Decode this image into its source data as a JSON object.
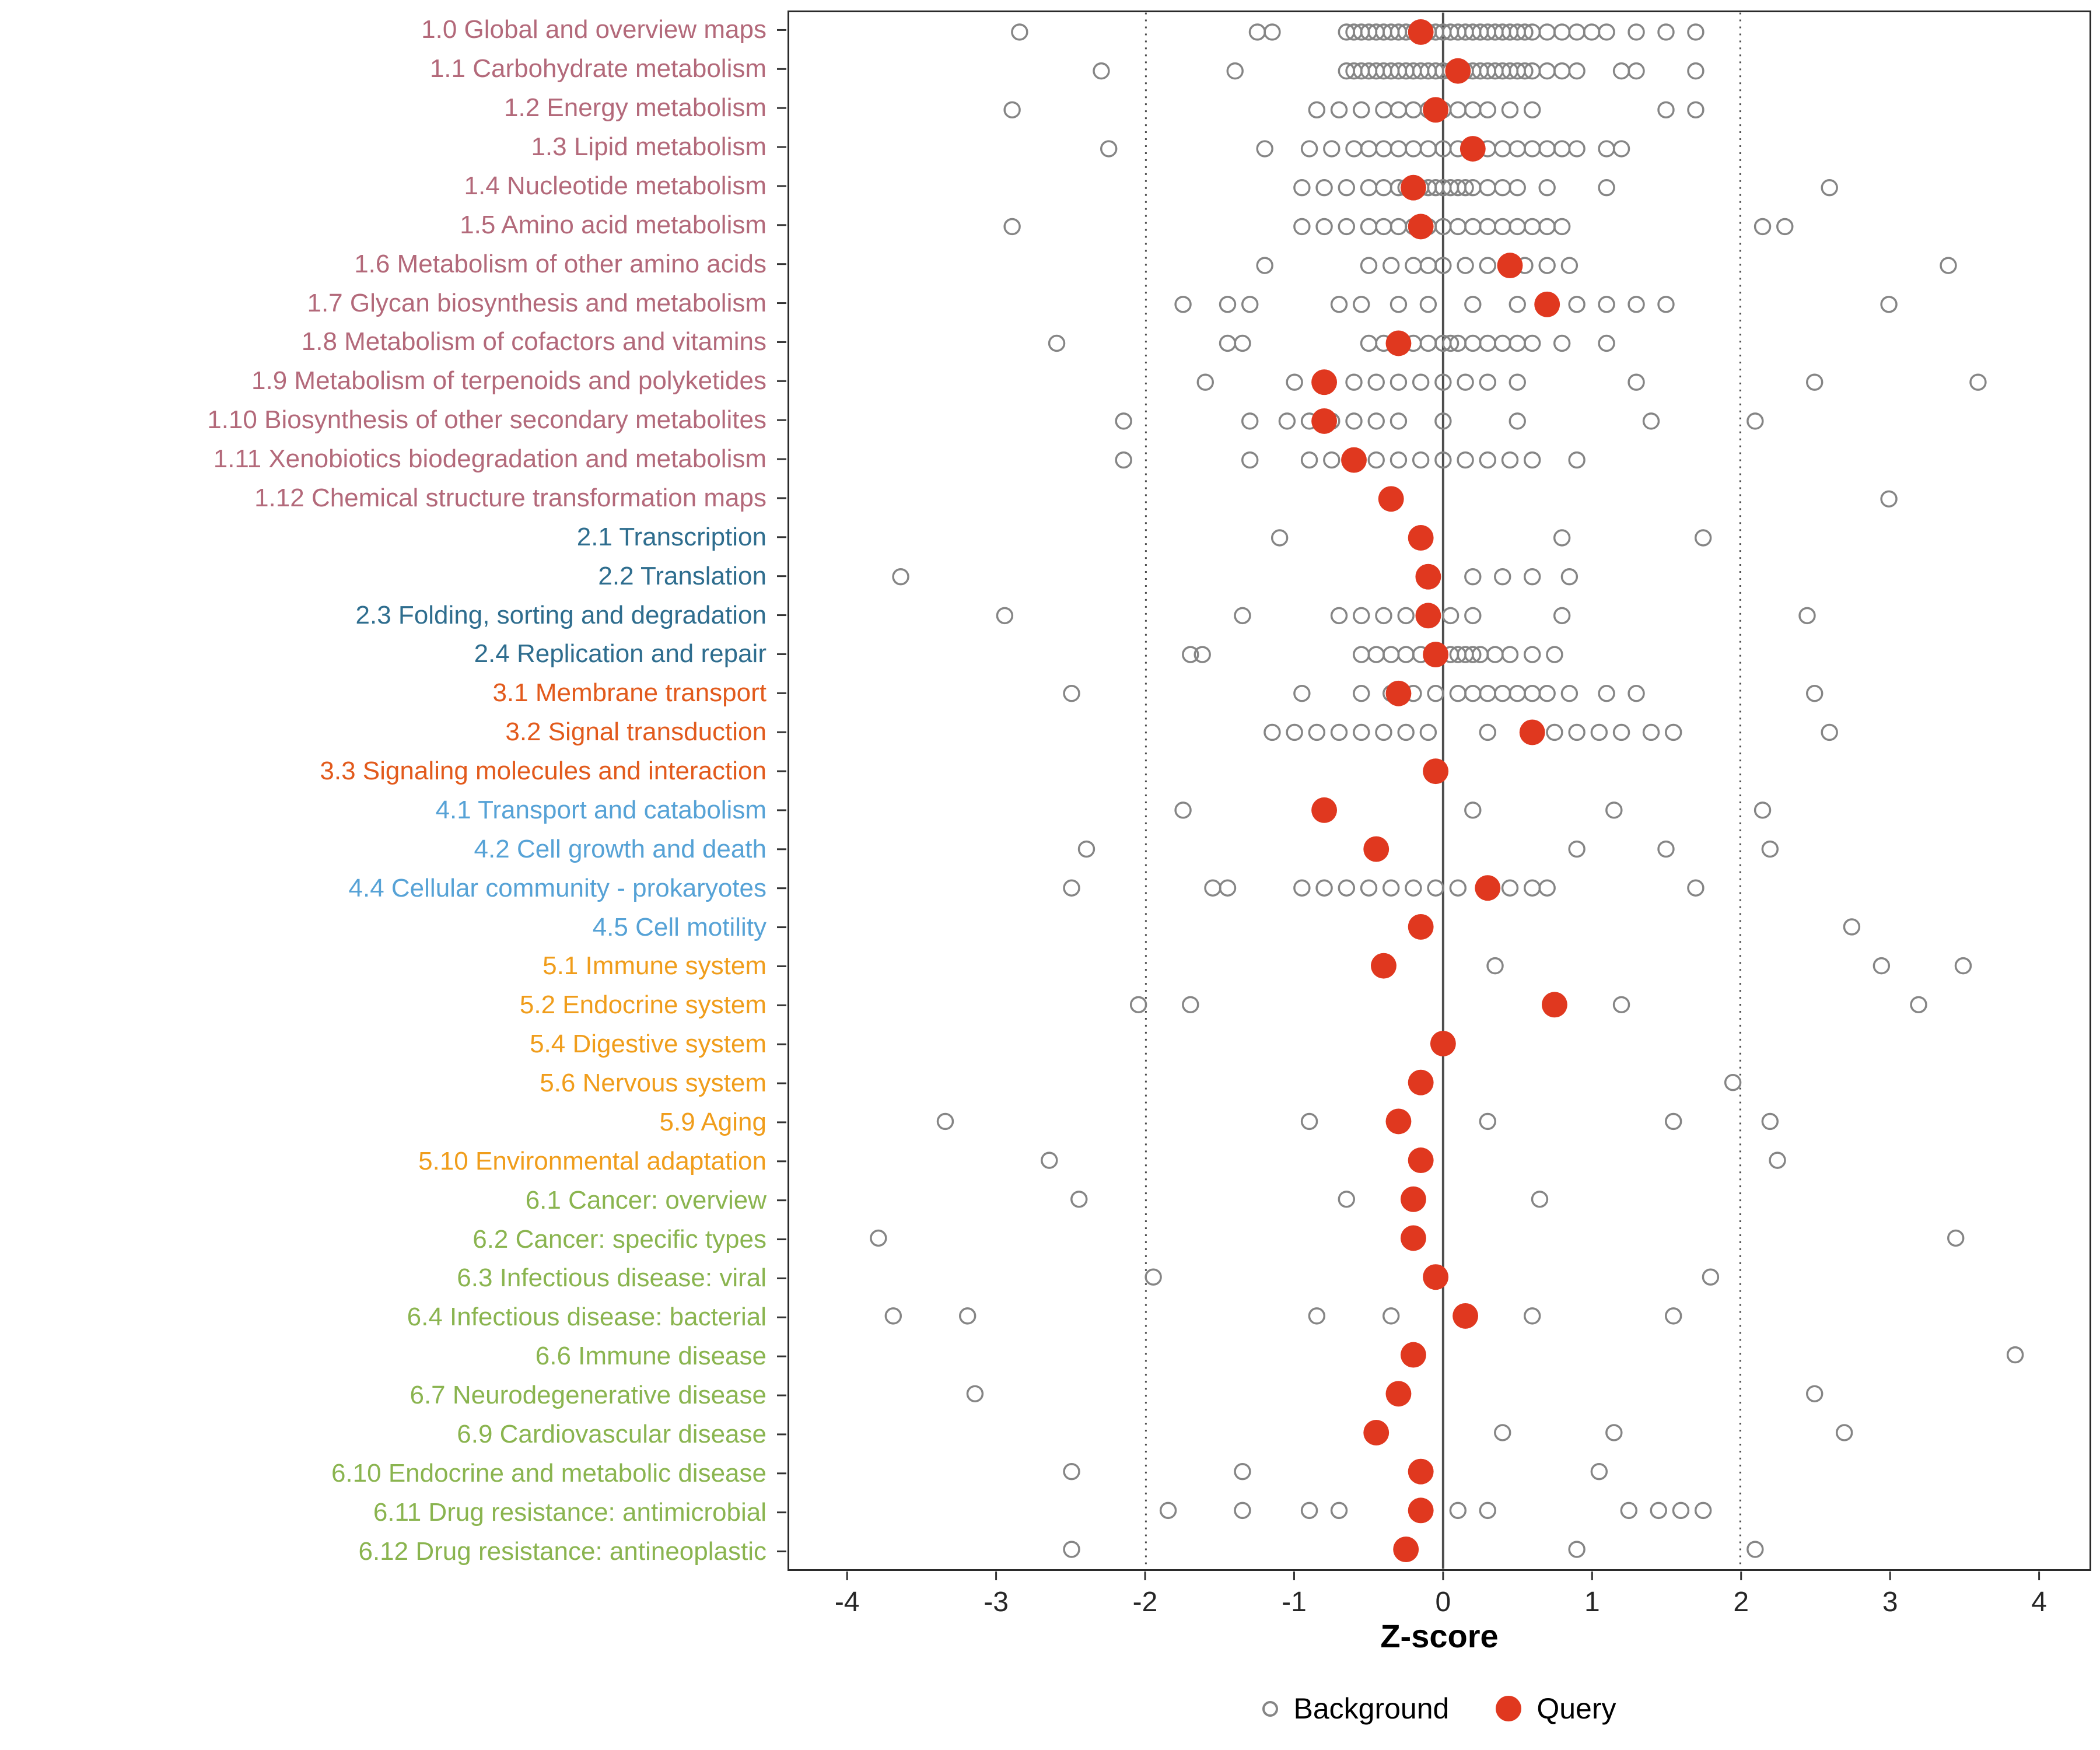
{
  "chart_data": {
    "type": "scatter",
    "title": "",
    "xlabel": "Z-score",
    "xlim": [
      -4.4,
      4.35
    ],
    "x_ticks": [
      -4,
      -3,
      -2,
      -1,
      0,
      1,
      2,
      3,
      4
    ],
    "reference_lines": {
      "solid": [
        0
      ],
      "dotted": [
        -2,
        2
      ]
    },
    "legend": [
      {
        "label": "Background",
        "type": "open"
      },
      {
        "label": "Query",
        "type": "filled"
      }
    ],
    "colors": {
      "query": "#e0381f",
      "background": "#858585",
      "ref_line": "#4d4d4d",
      "axis_text": "#262626"
    },
    "group_colors": {
      "metabolism": "#b3697a",
      "genetic": "#2e6d8e",
      "environmental": "#e25a1c",
      "cellular": "#56a2d6",
      "organismal": "#f09d1b",
      "disease": "#8ab44f"
    },
    "rows": [
      {
        "label": "1.0 Global and overview maps",
        "group": "metabolism",
        "query": -0.15,
        "background": [
          -2.85,
          -1.25,
          -1.15,
          -0.65,
          -0.6,
          -0.55,
          -0.5,
          -0.45,
          -0.4,
          -0.35,
          -0.3,
          -0.25,
          -0.2,
          -0.15,
          -0.1,
          -0.05,
          0.0,
          0.05,
          0.1,
          0.15,
          0.2,
          0.25,
          0.3,
          0.35,
          0.4,
          0.45,
          0.5,
          0.55,
          0.6,
          0.7,
          0.8,
          0.9,
          1.0,
          1.1,
          1.3,
          1.5,
          1.7
        ]
      },
      {
        "label": "1.1 Carbohydrate metabolism",
        "group": "metabolism",
        "query": 0.1,
        "background": [
          -2.3,
          -1.4,
          -0.65,
          -0.6,
          -0.55,
          -0.5,
          -0.45,
          -0.4,
          -0.35,
          -0.3,
          -0.25,
          -0.2,
          -0.15,
          -0.1,
          -0.05,
          0.0,
          0.05,
          0.1,
          0.15,
          0.2,
          0.25,
          0.3,
          0.35,
          0.4,
          0.45,
          0.5,
          0.55,
          0.6,
          0.7,
          0.8,
          0.9,
          1.2,
          1.3,
          1.7
        ]
      },
      {
        "label": "1.2 Energy metabolism",
        "group": "metabolism",
        "query": -0.05,
        "background": [
          -2.9,
          -0.85,
          -0.7,
          -0.55,
          -0.4,
          -0.3,
          -0.2,
          -0.1,
          0.0,
          0.1,
          0.2,
          0.3,
          0.45,
          0.6,
          1.5,
          1.7
        ]
      },
      {
        "label": "1.3 Lipid metabolism",
        "group": "metabolism",
        "query": 0.2,
        "background": [
          -2.25,
          -1.2,
          -0.9,
          -0.75,
          -0.6,
          -0.5,
          -0.4,
          -0.3,
          -0.2,
          -0.1,
          0.0,
          0.1,
          0.3,
          0.4,
          0.5,
          0.6,
          0.7,
          0.8,
          0.9,
          1.1,
          1.2
        ]
      },
      {
        "label": "1.4 Nucleotide metabolism",
        "group": "metabolism",
        "query": -0.2,
        "background": [
          -0.95,
          -0.8,
          -0.65,
          -0.5,
          -0.4,
          -0.3,
          -0.25,
          -0.2,
          -0.15,
          -0.1,
          -0.05,
          0.0,
          0.05,
          0.1,
          0.15,
          0.2,
          0.3,
          0.4,
          0.5,
          0.7,
          1.1,
          2.6
        ]
      },
      {
        "label": "1.5 Amino acid metabolism",
        "group": "metabolism",
        "query": -0.15,
        "background": [
          -2.9,
          -0.95,
          -0.8,
          -0.65,
          -0.5,
          -0.4,
          -0.3,
          -0.2,
          -0.1,
          0.0,
          0.1,
          0.2,
          0.3,
          0.4,
          0.5,
          0.6,
          0.7,
          0.8,
          2.15,
          2.3
        ]
      },
      {
        "label": "1.6 Metabolism of other amino acids",
        "group": "metabolism",
        "query": 0.45,
        "background": [
          -1.2,
          -0.5,
          -0.35,
          -0.2,
          -0.1,
          0.0,
          0.15,
          0.3,
          0.55,
          0.7,
          0.85,
          3.4
        ]
      },
      {
        "label": "1.7 Glycan biosynthesis and metabolism",
        "group": "metabolism",
        "query": 0.7,
        "background": [
          -1.75,
          -1.45,
          -1.3,
          -0.7,
          -0.55,
          -0.3,
          -0.1,
          0.2,
          0.5,
          0.9,
          1.1,
          1.3,
          1.5,
          3.0
        ]
      },
      {
        "label": "1.8 Metabolism of cofactors and vitamins",
        "group": "metabolism",
        "query": -0.3,
        "background": [
          -2.6,
          -1.45,
          -1.35,
          -0.5,
          -0.4,
          -0.3,
          -0.2,
          -0.1,
          0.0,
          0.05,
          0.1,
          0.2,
          0.3,
          0.4,
          0.5,
          0.6,
          0.8,
          1.1
        ]
      },
      {
        "label": "1.9 Metabolism of terpenoids and polyketides",
        "group": "metabolism",
        "query": -0.8,
        "background": [
          -1.6,
          -1.0,
          -0.8,
          -0.6,
          -0.45,
          -0.3,
          -0.15,
          0.0,
          0.15,
          0.3,
          0.5,
          1.3,
          2.5,
          3.6
        ]
      },
      {
        "label": "1.10 Biosynthesis of other secondary metabolites",
        "group": "metabolism",
        "query": -0.8,
        "background": [
          -2.15,
          -1.3,
          -1.05,
          -0.9,
          -0.75,
          -0.6,
          -0.45,
          -0.3,
          0.0,
          0.5,
          1.4,
          2.1
        ]
      },
      {
        "label": "1.11 Xenobiotics biodegradation and metabolism",
        "group": "metabolism",
        "query": -0.6,
        "background": [
          -2.15,
          -1.3,
          -0.9,
          -0.75,
          -0.6,
          -0.45,
          -0.3,
          -0.15,
          0.0,
          0.15,
          0.3,
          0.45,
          0.6,
          0.9
        ]
      },
      {
        "label": "1.12 Chemical structure transformation maps",
        "group": "metabolism",
        "query": -0.35,
        "background": [
          3.0
        ]
      },
      {
        "label": "2.1 Transcription",
        "group": "genetic",
        "query": -0.15,
        "background": [
          -1.1,
          0.8,
          1.75
        ]
      },
      {
        "label": "2.2 Translation",
        "group": "genetic",
        "query": -0.1,
        "background": [
          -3.65,
          0.2,
          0.4,
          0.6,
          0.85
        ]
      },
      {
        "label": "2.3 Folding, sorting and degradation",
        "group": "genetic",
        "query": -0.1,
        "background": [
          -2.95,
          -1.35,
          -0.7,
          -0.55,
          -0.4,
          -0.25,
          -0.1,
          0.05,
          0.2,
          0.8,
          2.45
        ]
      },
      {
        "label": "2.4 Replication and repair",
        "group": "genetic",
        "query": -0.05,
        "background": [
          -1.7,
          -1.62,
          -0.55,
          -0.45,
          -0.35,
          -0.25,
          -0.15,
          -0.05,
          0.05,
          0.1,
          0.15,
          0.2,
          0.25,
          0.35,
          0.45,
          0.6,
          0.75
        ]
      },
      {
        "label": "3.1 Membrane transport",
        "group": "environmental",
        "query": -0.3,
        "background": [
          -2.5,
          -0.95,
          -0.55,
          -0.35,
          -0.2,
          -0.05,
          0.1,
          0.2,
          0.3,
          0.4,
          0.5,
          0.6,
          0.7,
          0.85,
          1.1,
          1.3,
          2.5
        ]
      },
      {
        "label": "3.2 Signal transduction",
        "group": "environmental",
        "query": 0.6,
        "background": [
          -1.15,
          -1.0,
          -0.85,
          -0.7,
          -0.55,
          -0.4,
          -0.25,
          -0.1,
          0.3,
          0.75,
          0.9,
          1.05,
          1.2,
          1.4,
          1.55,
          2.6
        ]
      },
      {
        "label": "3.3 Signaling molecules and interaction",
        "group": "environmental",
        "query": -0.05,
        "background": []
      },
      {
        "label": "4.1 Transport and catabolism",
        "group": "cellular",
        "query": -0.8,
        "background": [
          -1.75,
          0.2,
          1.15,
          2.15
        ]
      },
      {
        "label": "4.2 Cell growth and death",
        "group": "cellular",
        "query": -0.45,
        "background": [
          -2.4,
          0.9,
          1.5,
          2.2
        ]
      },
      {
        "label": "4.4 Cellular community - prokaryotes",
        "group": "cellular",
        "query": 0.3,
        "background": [
          -2.5,
          -1.55,
          -1.45,
          -0.95,
          -0.8,
          -0.65,
          -0.5,
          -0.35,
          -0.2,
          -0.05,
          0.1,
          0.45,
          0.6,
          0.7,
          1.7
        ]
      },
      {
        "label": "4.5 Cell motility",
        "group": "cellular",
        "query": -0.15,
        "background": [
          2.75
        ]
      },
      {
        "label": "5.1 Immune system",
        "group": "organismal",
        "query": -0.4,
        "background": [
          0.35,
          2.95,
          3.5
        ]
      },
      {
        "label": "5.2 Endocrine system",
        "group": "organismal",
        "query": 0.75,
        "background": [
          -2.05,
          -1.7,
          1.2,
          3.2
        ]
      },
      {
        "label": "5.4 Digestive system",
        "group": "organismal",
        "query": 0.0,
        "background": []
      },
      {
        "label": "5.6 Nervous system",
        "group": "organismal",
        "query": -0.15,
        "background": [
          1.95
        ]
      },
      {
        "label": "5.9 Aging",
        "group": "organismal",
        "query": -0.3,
        "background": [
          -3.35,
          -0.9,
          0.3,
          1.55,
          2.2
        ]
      },
      {
        "label": "5.10 Environmental adaptation",
        "group": "organismal",
        "query": -0.15,
        "background": [
          -2.65,
          2.25
        ]
      },
      {
        "label": "6.1 Cancer: overview",
        "group": "disease",
        "query": -0.2,
        "background": [
          -2.45,
          -0.65,
          0.65
        ]
      },
      {
        "label": "6.2 Cancer: specific types",
        "group": "disease",
        "query": -0.2,
        "background": [
          -3.8,
          3.45
        ]
      },
      {
        "label": "6.3 Infectious disease: viral",
        "group": "disease",
        "query": -0.05,
        "background": [
          -1.95,
          1.8
        ]
      },
      {
        "label": "6.4 Infectious disease: bacterial",
        "group": "disease",
        "query": 0.15,
        "background": [
          -3.7,
          -3.2,
          -0.85,
          -0.35,
          0.6,
          1.55
        ]
      },
      {
        "label": "6.6 Immune disease",
        "group": "disease",
        "query": -0.2,
        "background": [
          3.85
        ]
      },
      {
        "label": "6.7 Neurodegenerative disease",
        "group": "disease",
        "query": -0.3,
        "background": [
          -3.15,
          2.5
        ]
      },
      {
        "label": "6.9 Cardiovascular disease",
        "group": "disease",
        "query": -0.45,
        "background": [
          0.4,
          1.15,
          2.7
        ]
      },
      {
        "label": "6.10 Endocrine and metabolic disease",
        "group": "disease",
        "query": -0.15,
        "background": [
          -2.5,
          -1.35,
          1.05
        ]
      },
      {
        "label": "6.11 Drug resistance: antimicrobial",
        "group": "disease",
        "query": -0.15,
        "background": [
          -1.85,
          -1.35,
          -0.9,
          -0.7,
          0.1,
          0.3,
          1.25,
          1.45,
          1.6,
          1.75
        ]
      },
      {
        "label": "6.12 Drug resistance: antineoplastic",
        "group": "disease",
        "query": -0.25,
        "background": [
          -2.5,
          0.9,
          2.1
        ]
      }
    ]
  }
}
